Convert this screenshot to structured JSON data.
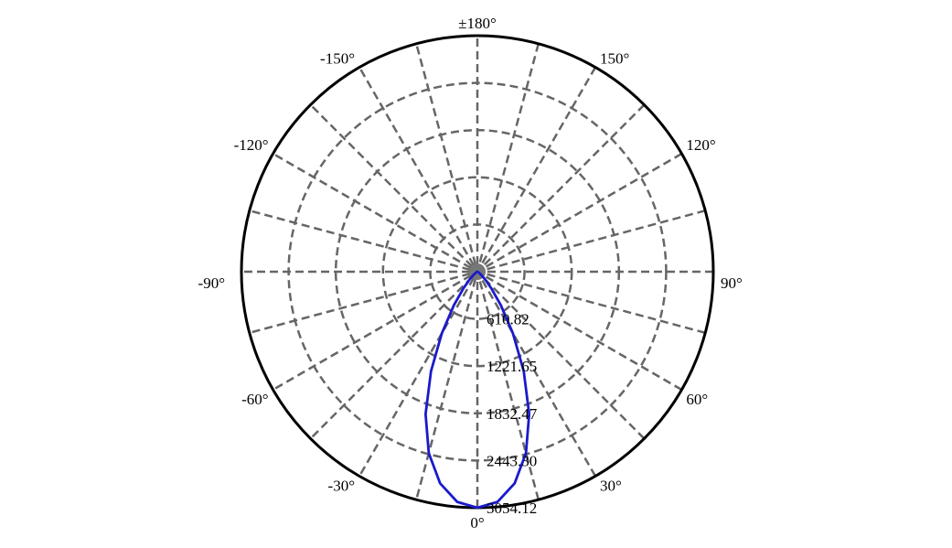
{
  "chart_data": {
    "type": "polar",
    "angle_labels": [
      {
        "angle": 180,
        "text": "±180°"
      },
      {
        "angle": 150,
        "text": "150°"
      },
      {
        "angle": 120,
        "text": "120°"
      },
      {
        "angle": 90,
        "text": "90°"
      },
      {
        "angle": 60,
        "text": "60°"
      },
      {
        "angle": 30,
        "text": "30°"
      },
      {
        "angle": 0,
        "text": "0°"
      },
      {
        "angle": -30,
        "text": "-30°"
      },
      {
        "angle": -60,
        "text": "-60°"
      },
      {
        "angle": -90,
        "text": "-90°"
      },
      {
        "angle": -120,
        "text": "-120°"
      },
      {
        "angle": -150,
        "text": "-150°"
      }
    ],
    "radial_ticks": [
      {
        "value": 610.82,
        "text": "610.82"
      },
      {
        "value": 1221.65,
        "text": "1221.65"
      },
      {
        "value": 1832.47,
        "text": "1832.47"
      },
      {
        "value": 2443.3,
        "text": "2443.30"
      },
      {
        "value": 3054.12,
        "text": "3054.12"
      }
    ],
    "r_max": 3054.12,
    "angular_grid_step": 15,
    "grid": true,
    "series": [
      {
        "color": "#1a1acc",
        "angles": [
          0,
          5,
          10,
          15,
          20,
          25,
          30,
          35,
          40,
          45,
          50,
          60,
          70,
          80,
          90
        ],
        "values": [
          3054.12,
          2990,
          2780,
          2430,
          1960,
          1420,
          920,
          530,
          280,
          140,
          70,
          20,
          5,
          1,
          0
        ]
      }
    ]
  }
}
